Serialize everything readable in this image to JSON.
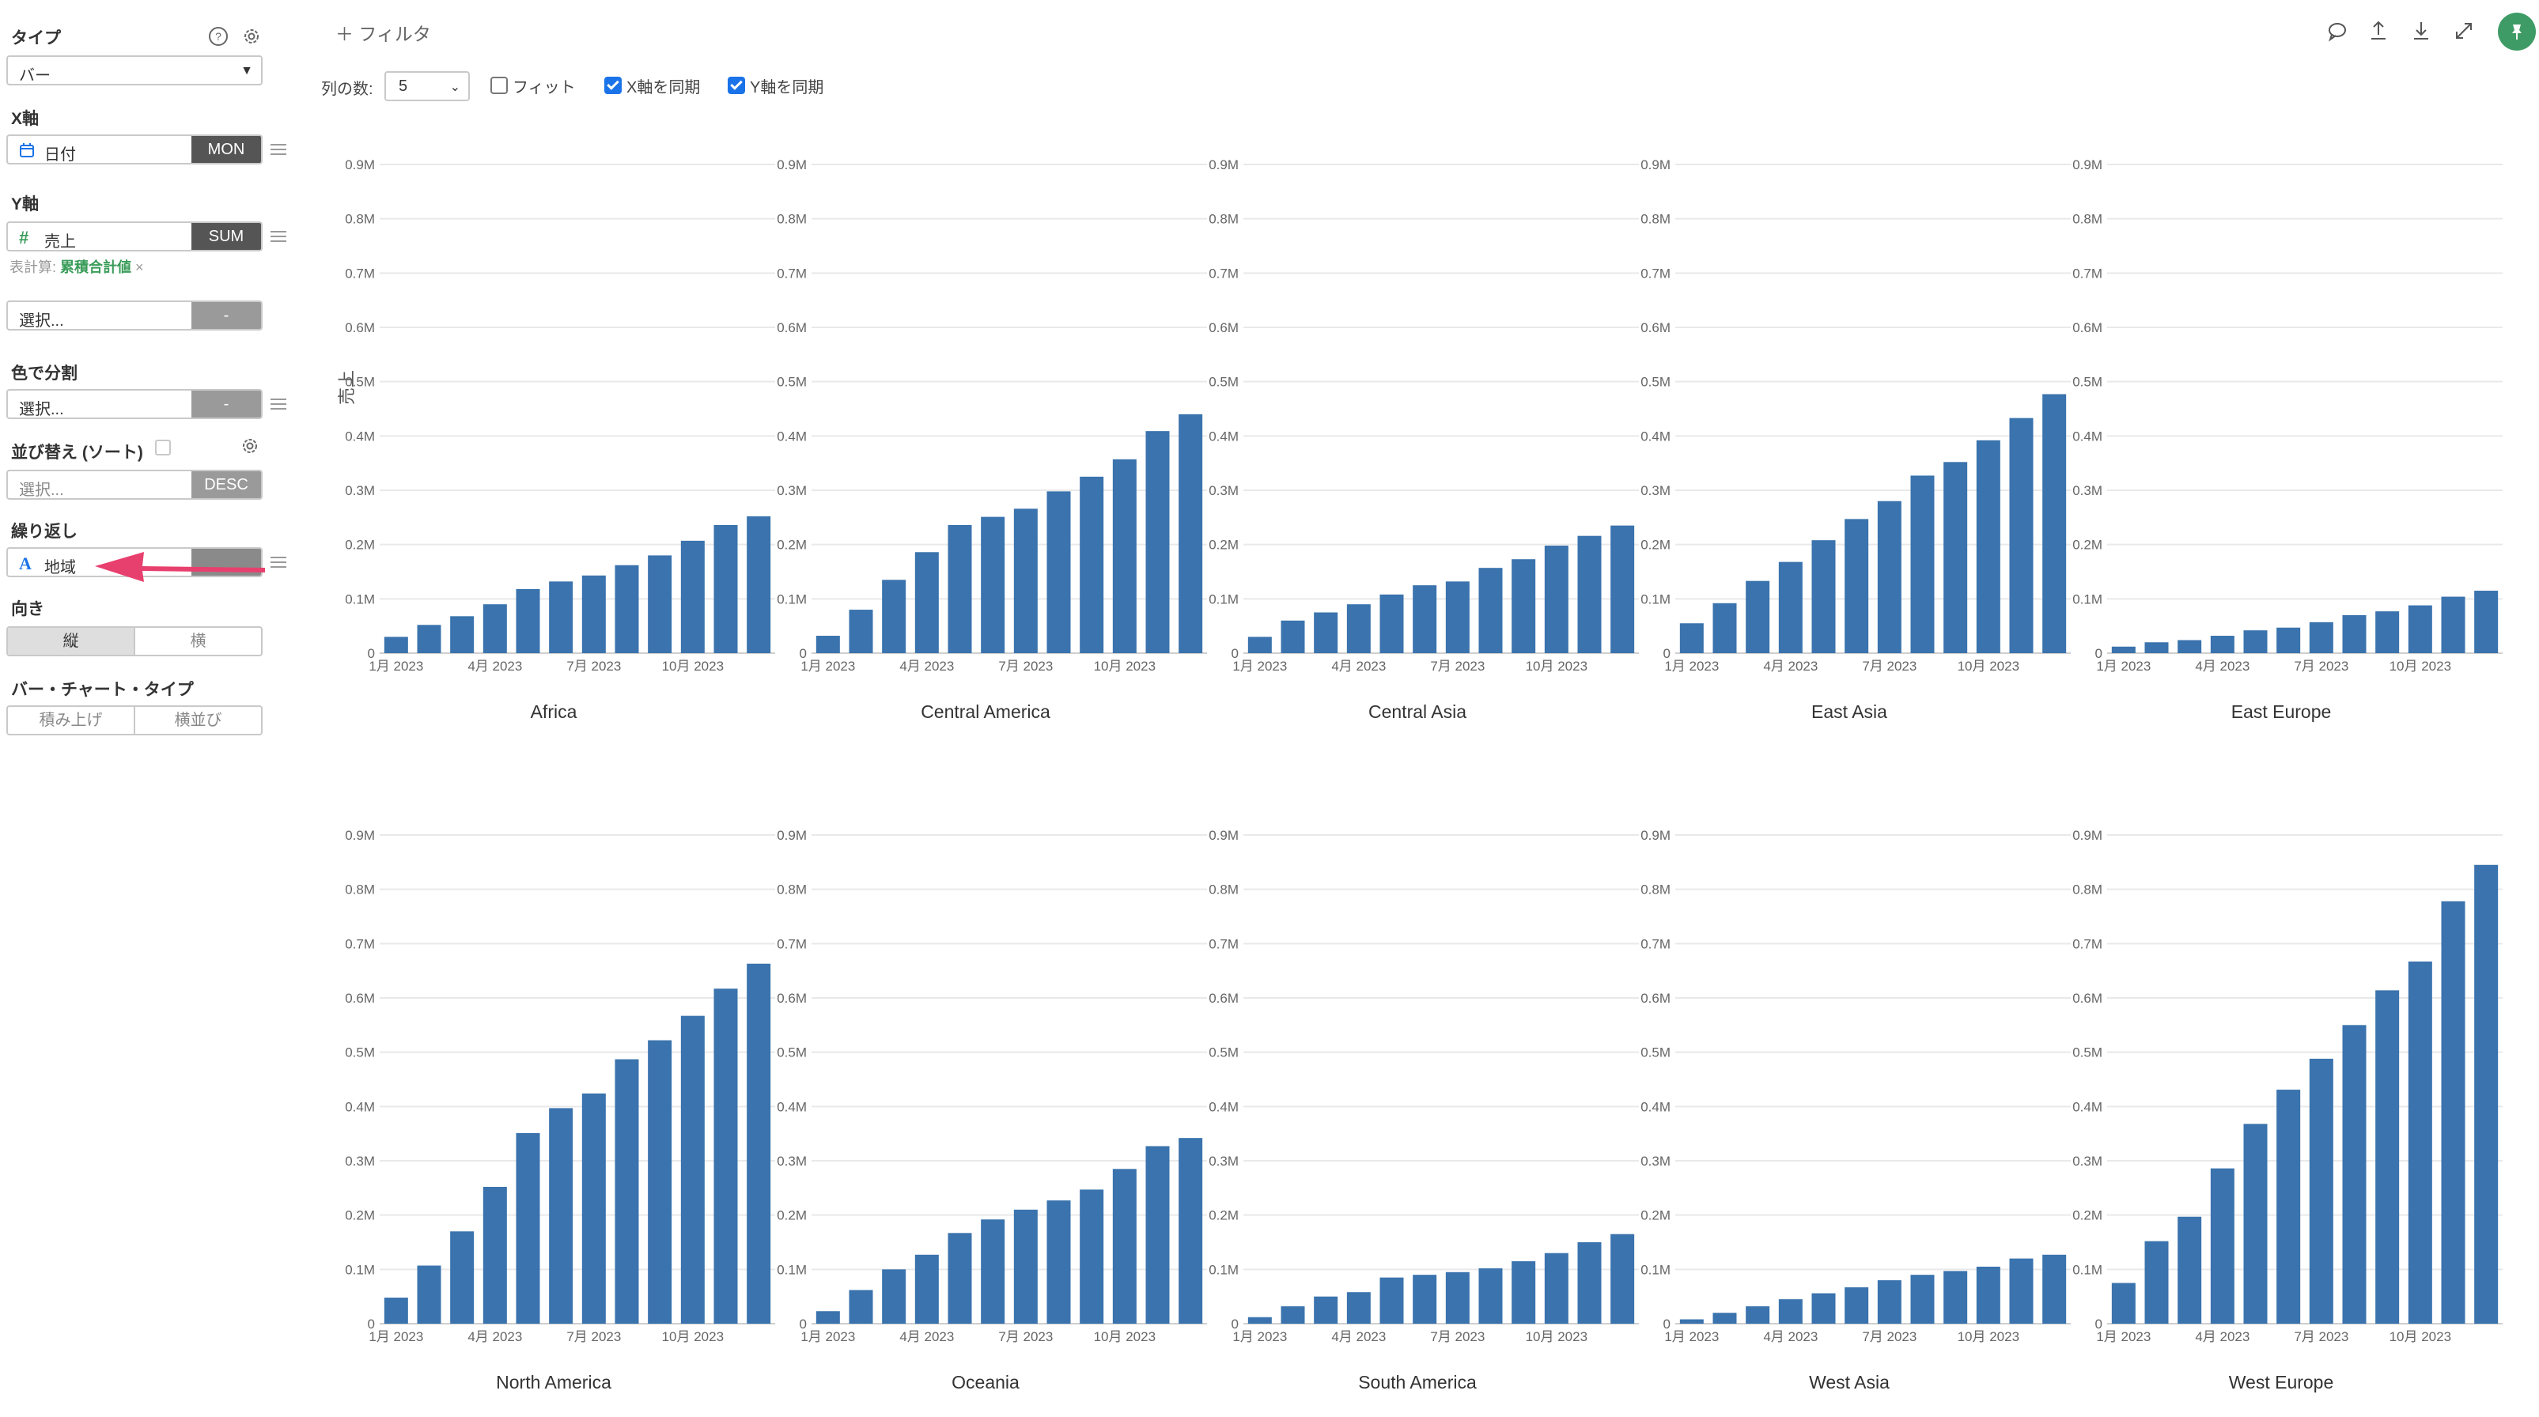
{
  "sidebar": {
    "type_title": "タイプ",
    "type_value": "バー",
    "x_title": "X軸",
    "x_field": "日付",
    "x_agg": "MON",
    "y_title": "Y軸",
    "y_field": "売上",
    "y_agg": "SUM",
    "table_calc_label": "表計算:",
    "table_calc_value": "累積合計値",
    "table_calc_remove": "×",
    "extra_select": "選択...",
    "extra_agg": "-",
    "color_title": "色で分割",
    "color_select": "選択...",
    "color_agg": "-",
    "sort_title": "並び替え (ソート)",
    "sort_select": "選択...",
    "sort_order": "DESC",
    "repeat_title": "繰り返し",
    "repeat_field": "地域",
    "orientation_title": "向き",
    "orientation_options": [
      "縦",
      "横"
    ],
    "bar_type_title": "バー・チャート・タイプ",
    "bar_type_options": [
      "積み上げ",
      "横並び"
    ]
  },
  "toolbar": {
    "filter_label": "フィルタ",
    "col_count_label": "列の数:",
    "col_count_value": "5",
    "fit_label": "フィット",
    "sync_x_label": "X軸を同期",
    "sync_y_label": "Y軸を同期"
  },
  "colors": {
    "bar": "#3a73ad",
    "pin": "#3e9b65",
    "accent_green": "#3a9c5a",
    "arrow": "#e8406e"
  },
  "chart_data": {
    "type": "bar",
    "ylabel": "売上",
    "ylim": [
      0,
      900000
    ],
    "y_ticks": [
      "0",
      "0.1M",
      "0.2M",
      "0.3M",
      "0.4M",
      "0.5M",
      "0.6M",
      "0.7M",
      "0.8M",
      "0.9M"
    ],
    "x_tick_labels": [
      "1月 2023",
      "4月 2023",
      "7月 2023",
      "10月 2023"
    ],
    "categories": [
      "2023-01",
      "2023-02",
      "2023-03",
      "2023-04",
      "2023-05",
      "2023-06",
      "2023-07",
      "2023-08",
      "2023-09",
      "2023-10",
      "2023-11",
      "2023-12"
    ],
    "series": [
      {
        "name": "Africa",
        "values": [
          30000,
          52000,
          68000,
          90000,
          118000,
          132000,
          143000,
          162000,
          180000,
          207000,
          236000,
          252000
        ]
      },
      {
        "name": "Central America",
        "values": [
          32000,
          80000,
          135000,
          186000,
          236000,
          251000,
          266000,
          298000,
          325000,
          357000,
          409000,
          440000
        ]
      },
      {
        "name": "Central Asia",
        "values": [
          30000,
          60000,
          75000,
          90000,
          108000,
          125000,
          132000,
          157000,
          173000,
          198000,
          216000,
          235000
        ]
      },
      {
        "name": "East Asia",
        "values": [
          55000,
          92000,
          133000,
          168000,
          208000,
          247000,
          280000,
          327000,
          352000,
          392000,
          433000,
          477000
        ]
      },
      {
        "name": "East Europe",
        "values": [
          12000,
          20000,
          24000,
          32000,
          42000,
          47000,
          57000,
          70000,
          77000,
          88000,
          104000,
          115000
        ]
      },
      {
        "name": "North America",
        "values": [
          48000,
          107000,
          170000,
          252000,
          351000,
          397000,
          424000,
          487000,
          522000,
          567000,
          617000,
          663000
        ]
      },
      {
        "name": "Oceania",
        "values": [
          23000,
          62000,
          100000,
          127000,
          167000,
          192000,
          210000,
          227000,
          247000,
          285000,
          327000,
          342000
        ]
      },
      {
        "name": "South America",
        "values": [
          12000,
          32000,
          50000,
          58000,
          85000,
          90000,
          95000,
          102000,
          115000,
          130000,
          150000,
          165000
        ]
      },
      {
        "name": "West Asia",
        "values": [
          8000,
          20000,
          32000,
          45000,
          56000,
          67000,
          80000,
          90000,
          97000,
          105000,
          120000,
          127000
        ]
      },
      {
        "name": "West Europe",
        "values": [
          75000,
          152000,
          197000,
          286000,
          368000,
          431000,
          488000,
          550000,
          614000,
          667000,
          778000,
          845000
        ]
      }
    ]
  }
}
